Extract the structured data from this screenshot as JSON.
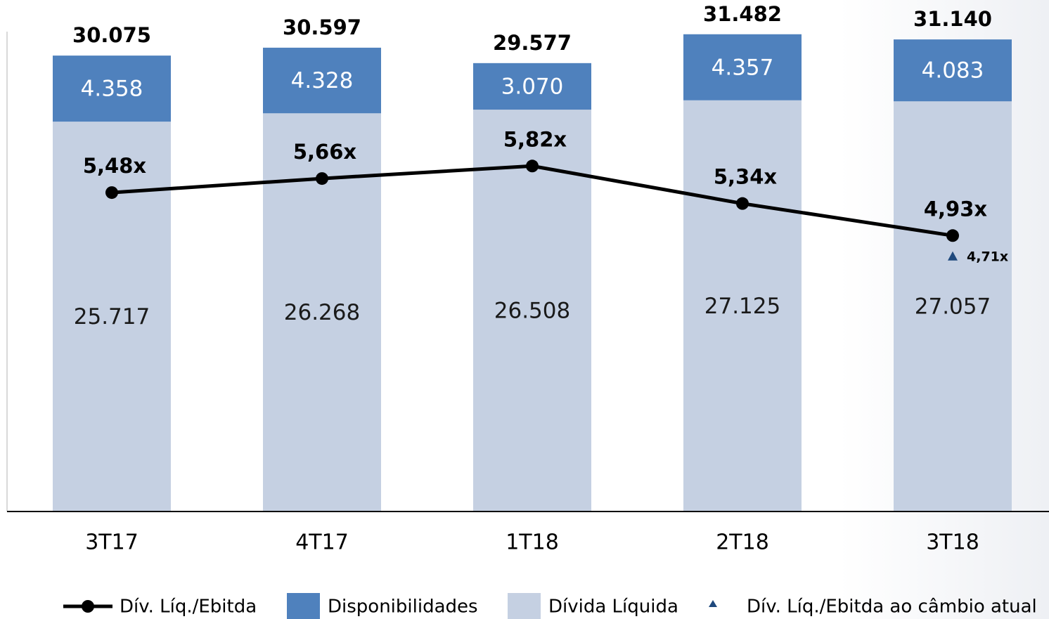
{
  "chart_data": {
    "type": "bar",
    "stacked": true,
    "categories": [
      "3T17",
      "4T17",
      "1T18",
      "2T18",
      "3T18"
    ],
    "series": [
      {
        "name": "Dív. Líq./Ebitda",
        "type": "line",
        "axis": "y2",
        "color": "#000000",
        "values": [
          5.48,
          5.66,
          5.82,
          5.34,
          4.93
        ],
        "value_labels": [
          "5,48x",
          "5,66x",
          "5,82x",
          "5,34x",
          "4,93x"
        ]
      },
      {
        "name": "Disponibilidades",
        "type": "bar",
        "color": "#4f81bd",
        "label_color": "#ffffff",
        "values": [
          4358,
          4328,
          3070,
          4357,
          4083
        ],
        "value_labels": [
          "4.358",
          "4.328",
          "3.070",
          "4.357",
          "4.083"
        ]
      },
      {
        "name": "Dívida Líquida",
        "type": "bar",
        "color": "#c5d0e2",
        "label_color": "#1a1a1a",
        "values": [
          25717,
          26268,
          26508,
          27125,
          27057
        ],
        "value_labels": [
          "25.717",
          "26.268",
          "26.508",
          "27.125",
          "27.057"
        ]
      },
      {
        "name": "Dív. Líq./Ebitda ao câmbio atual",
        "type": "scatter",
        "marker": "triangle",
        "axis": "y2",
        "color": "#1f497d",
        "values": [
          null,
          null,
          null,
          null,
          4.71
        ],
        "value_labels": [
          null,
          null,
          null,
          null,
          "4,71x"
        ]
      }
    ],
    "totals": {
      "values": [
        30075,
        30597,
        29577,
        31482,
        31140
      ],
      "value_labels": [
        "30.075",
        "30.597",
        "29.577",
        "31.482",
        "31.140"
      ]
    },
    "ylim": [
      0,
      33000
    ],
    "y2lim": [
      1.4,
      7.8
    ],
    "legend": "bottom"
  }
}
